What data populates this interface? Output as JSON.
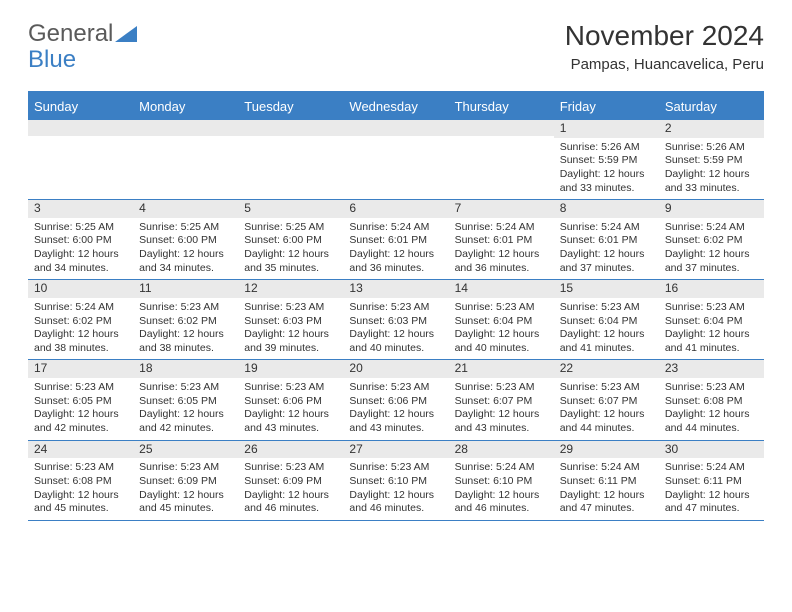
{
  "logo": {
    "text1": "General",
    "text2": "Blue"
  },
  "title": "November 2024",
  "location": "Pampas, Huancavelica, Peru",
  "colors": {
    "header_bg": "#3b7fc4",
    "header_text": "#ffffff",
    "daynum_bg": "#eaeaea",
    "border": "#3b7fc4",
    "text": "#333333",
    "logo_gray": "#5a5a5a",
    "logo_blue": "#3b7fc4"
  },
  "day_names": [
    "Sunday",
    "Monday",
    "Tuesday",
    "Wednesday",
    "Thursday",
    "Friday",
    "Saturday"
  ],
  "weeks": [
    [
      {
        "empty": true
      },
      {
        "empty": true
      },
      {
        "empty": true
      },
      {
        "empty": true
      },
      {
        "empty": true
      },
      {
        "day": "1",
        "sunrise": "Sunrise: 5:26 AM",
        "sunset": "Sunset: 5:59 PM",
        "daylight1": "Daylight: 12 hours",
        "daylight2": "and 33 minutes."
      },
      {
        "day": "2",
        "sunrise": "Sunrise: 5:26 AM",
        "sunset": "Sunset: 5:59 PM",
        "daylight1": "Daylight: 12 hours",
        "daylight2": "and 33 minutes."
      }
    ],
    [
      {
        "day": "3",
        "sunrise": "Sunrise: 5:25 AM",
        "sunset": "Sunset: 6:00 PM",
        "daylight1": "Daylight: 12 hours",
        "daylight2": "and 34 minutes."
      },
      {
        "day": "4",
        "sunrise": "Sunrise: 5:25 AM",
        "sunset": "Sunset: 6:00 PM",
        "daylight1": "Daylight: 12 hours",
        "daylight2": "and 34 minutes."
      },
      {
        "day": "5",
        "sunrise": "Sunrise: 5:25 AM",
        "sunset": "Sunset: 6:00 PM",
        "daylight1": "Daylight: 12 hours",
        "daylight2": "and 35 minutes."
      },
      {
        "day": "6",
        "sunrise": "Sunrise: 5:24 AM",
        "sunset": "Sunset: 6:01 PM",
        "daylight1": "Daylight: 12 hours",
        "daylight2": "and 36 minutes."
      },
      {
        "day": "7",
        "sunrise": "Sunrise: 5:24 AM",
        "sunset": "Sunset: 6:01 PM",
        "daylight1": "Daylight: 12 hours",
        "daylight2": "and 36 minutes."
      },
      {
        "day": "8",
        "sunrise": "Sunrise: 5:24 AM",
        "sunset": "Sunset: 6:01 PM",
        "daylight1": "Daylight: 12 hours",
        "daylight2": "and 37 minutes."
      },
      {
        "day": "9",
        "sunrise": "Sunrise: 5:24 AM",
        "sunset": "Sunset: 6:02 PM",
        "daylight1": "Daylight: 12 hours",
        "daylight2": "and 37 minutes."
      }
    ],
    [
      {
        "day": "10",
        "sunrise": "Sunrise: 5:24 AM",
        "sunset": "Sunset: 6:02 PM",
        "daylight1": "Daylight: 12 hours",
        "daylight2": "and 38 minutes."
      },
      {
        "day": "11",
        "sunrise": "Sunrise: 5:23 AM",
        "sunset": "Sunset: 6:02 PM",
        "daylight1": "Daylight: 12 hours",
        "daylight2": "and 38 minutes."
      },
      {
        "day": "12",
        "sunrise": "Sunrise: 5:23 AM",
        "sunset": "Sunset: 6:03 PM",
        "daylight1": "Daylight: 12 hours",
        "daylight2": "and 39 minutes."
      },
      {
        "day": "13",
        "sunrise": "Sunrise: 5:23 AM",
        "sunset": "Sunset: 6:03 PM",
        "daylight1": "Daylight: 12 hours",
        "daylight2": "and 40 minutes."
      },
      {
        "day": "14",
        "sunrise": "Sunrise: 5:23 AM",
        "sunset": "Sunset: 6:04 PM",
        "daylight1": "Daylight: 12 hours",
        "daylight2": "and 40 minutes."
      },
      {
        "day": "15",
        "sunrise": "Sunrise: 5:23 AM",
        "sunset": "Sunset: 6:04 PM",
        "daylight1": "Daylight: 12 hours",
        "daylight2": "and 41 minutes."
      },
      {
        "day": "16",
        "sunrise": "Sunrise: 5:23 AM",
        "sunset": "Sunset: 6:04 PM",
        "daylight1": "Daylight: 12 hours",
        "daylight2": "and 41 minutes."
      }
    ],
    [
      {
        "day": "17",
        "sunrise": "Sunrise: 5:23 AM",
        "sunset": "Sunset: 6:05 PM",
        "daylight1": "Daylight: 12 hours",
        "daylight2": "and 42 minutes."
      },
      {
        "day": "18",
        "sunrise": "Sunrise: 5:23 AM",
        "sunset": "Sunset: 6:05 PM",
        "daylight1": "Daylight: 12 hours",
        "daylight2": "and 42 minutes."
      },
      {
        "day": "19",
        "sunrise": "Sunrise: 5:23 AM",
        "sunset": "Sunset: 6:06 PM",
        "daylight1": "Daylight: 12 hours",
        "daylight2": "and 43 minutes."
      },
      {
        "day": "20",
        "sunrise": "Sunrise: 5:23 AM",
        "sunset": "Sunset: 6:06 PM",
        "daylight1": "Daylight: 12 hours",
        "daylight2": "and 43 minutes."
      },
      {
        "day": "21",
        "sunrise": "Sunrise: 5:23 AM",
        "sunset": "Sunset: 6:07 PM",
        "daylight1": "Daylight: 12 hours",
        "daylight2": "and 43 minutes."
      },
      {
        "day": "22",
        "sunrise": "Sunrise: 5:23 AM",
        "sunset": "Sunset: 6:07 PM",
        "daylight1": "Daylight: 12 hours",
        "daylight2": "and 44 minutes."
      },
      {
        "day": "23",
        "sunrise": "Sunrise: 5:23 AM",
        "sunset": "Sunset: 6:08 PM",
        "daylight1": "Daylight: 12 hours",
        "daylight2": "and 44 minutes."
      }
    ],
    [
      {
        "day": "24",
        "sunrise": "Sunrise: 5:23 AM",
        "sunset": "Sunset: 6:08 PM",
        "daylight1": "Daylight: 12 hours",
        "daylight2": "and 45 minutes."
      },
      {
        "day": "25",
        "sunrise": "Sunrise: 5:23 AM",
        "sunset": "Sunset: 6:09 PM",
        "daylight1": "Daylight: 12 hours",
        "daylight2": "and 45 minutes."
      },
      {
        "day": "26",
        "sunrise": "Sunrise: 5:23 AM",
        "sunset": "Sunset: 6:09 PM",
        "daylight1": "Daylight: 12 hours",
        "daylight2": "and 46 minutes."
      },
      {
        "day": "27",
        "sunrise": "Sunrise: 5:23 AM",
        "sunset": "Sunset: 6:10 PM",
        "daylight1": "Daylight: 12 hours",
        "daylight2": "and 46 minutes."
      },
      {
        "day": "28",
        "sunrise": "Sunrise: 5:24 AM",
        "sunset": "Sunset: 6:10 PM",
        "daylight1": "Daylight: 12 hours",
        "daylight2": "and 46 minutes."
      },
      {
        "day": "29",
        "sunrise": "Sunrise: 5:24 AM",
        "sunset": "Sunset: 6:11 PM",
        "daylight1": "Daylight: 12 hours",
        "daylight2": "and 47 minutes."
      },
      {
        "day": "30",
        "sunrise": "Sunrise: 5:24 AM",
        "sunset": "Sunset: 6:11 PM",
        "daylight1": "Daylight: 12 hours",
        "daylight2": "and 47 minutes."
      }
    ]
  ]
}
